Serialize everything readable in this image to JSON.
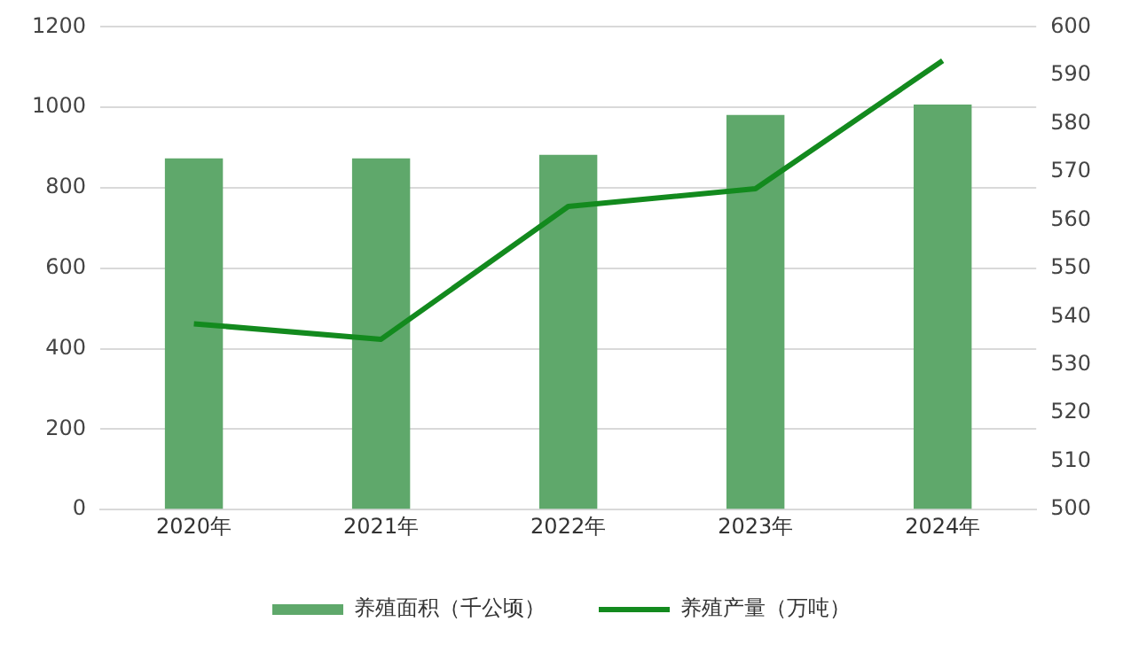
{
  "chart_data": {
    "type": "bar",
    "categories": [
      "2020年",
      "2021年",
      "2022年",
      "2023年",
      "2024年"
    ],
    "series": [
      {
        "name": "养殖面积（千公顷）",
        "color": "#5fa86b",
        "values": [
          873,
          873,
          882,
          981,
          1007
        ]
      },
      {
        "name": "养殖产量（万吨）",
        "type": "line",
        "axis": "y2",
        "color": "#138a1e",
        "values": [
          538.5,
          535.3,
          562.8,
          566.5,
          593
        ]
      }
    ],
    "ylim": [
      0,
      1200
    ],
    "yticks": [
      0,
      200,
      400,
      600,
      800,
      1000,
      1200
    ],
    "y2lim": [
      500,
      600
    ],
    "y2ticks": [
      500,
      510,
      520,
      530,
      540,
      550,
      560,
      570,
      580,
      590,
      600
    ],
    "grid": "y",
    "legend": "bottom",
    "marker": "none"
  }
}
